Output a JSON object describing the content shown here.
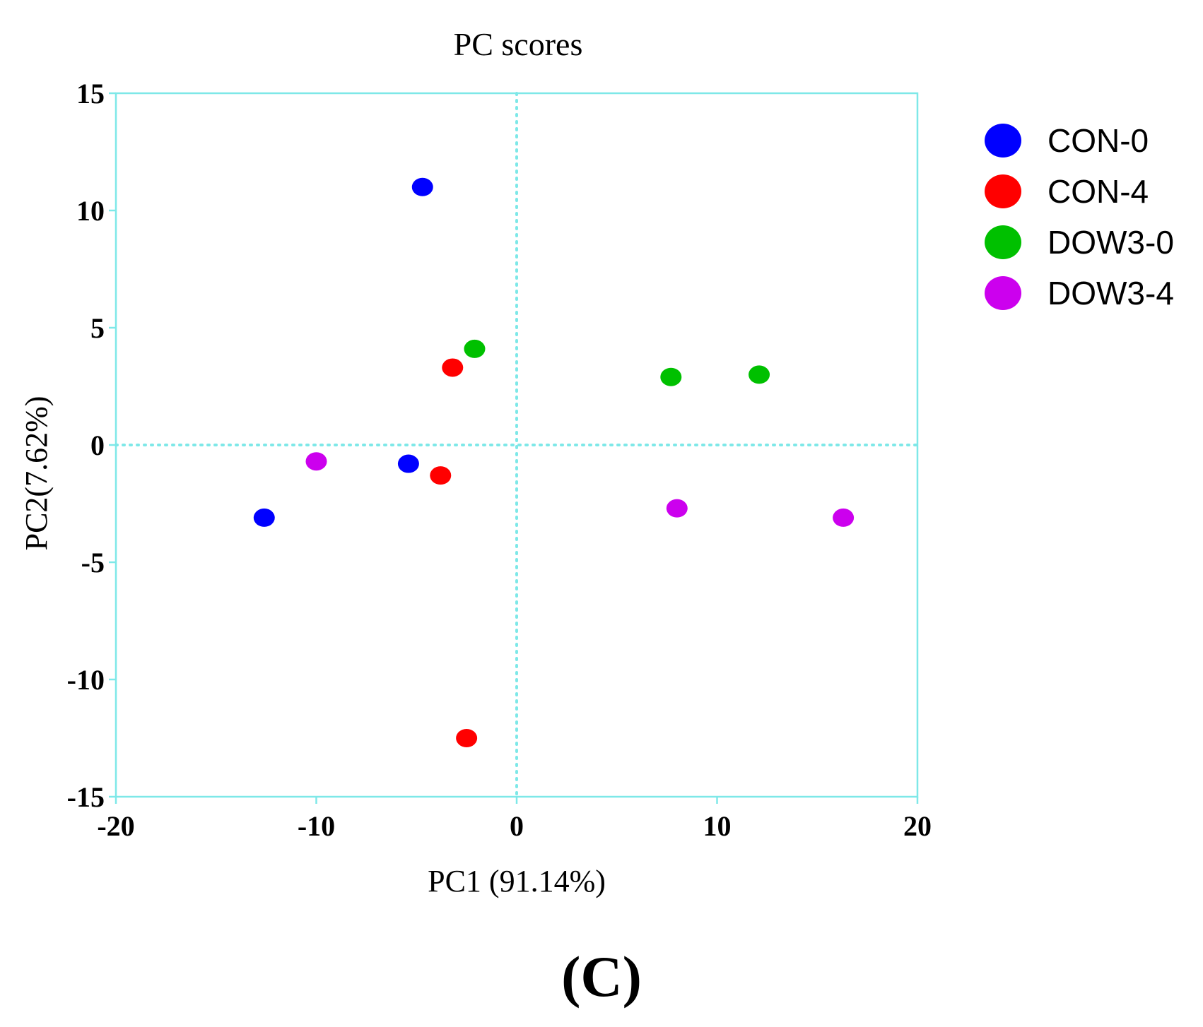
{
  "chart_data": {
    "type": "scatter",
    "title": "PC scores",
    "xlabel": "PC1 (91.14%)",
    "ylabel": "PC2(7.62%)",
    "xlim": [
      -20,
      20
    ],
    "ylim": [
      -15,
      15
    ],
    "xticks": [
      -20,
      -10,
      0,
      10,
      20
    ],
    "yticks": [
      -15,
      -10,
      -5,
      0,
      5,
      10,
      15
    ],
    "xtick_labels": [
      "-20",
      "-10",
      "0",
      "10",
      "20"
    ],
    "ytick_labels": [
      "-15",
      "-10",
      "-5",
      "0",
      "5",
      "10",
      "15"
    ],
    "reference_lines": {
      "x": 0,
      "y": 0,
      "style": "dotted"
    },
    "grid": false,
    "legend_position": "right",
    "series": [
      {
        "name": "CON-0",
        "color": "#0000ff",
        "points": [
          [
            -4.7,
            11.0
          ],
          [
            -5.4,
            -0.8
          ],
          [
            -12.6,
            -3.1
          ]
        ]
      },
      {
        "name": "CON-4",
        "color": "#ff0000",
        "points": [
          [
            -3.2,
            3.3
          ],
          [
            -3.8,
            -1.3
          ],
          [
            -2.5,
            -12.5
          ]
        ]
      },
      {
        "name": "DOW3-0",
        "color": "#00c000",
        "points": [
          [
            -2.1,
            4.1
          ],
          [
            7.7,
            2.9
          ],
          [
            12.1,
            3.0
          ]
        ]
      },
      {
        "name": "DOW3-4",
        "color": "#cc00ee",
        "points": [
          [
            -10.0,
            -0.7
          ],
          [
            8.0,
            -2.7
          ],
          [
            16.3,
            -3.1
          ]
        ]
      }
    ],
    "panel_label": "(C)"
  },
  "colors": {
    "axis": "#7ee8e8"
  }
}
